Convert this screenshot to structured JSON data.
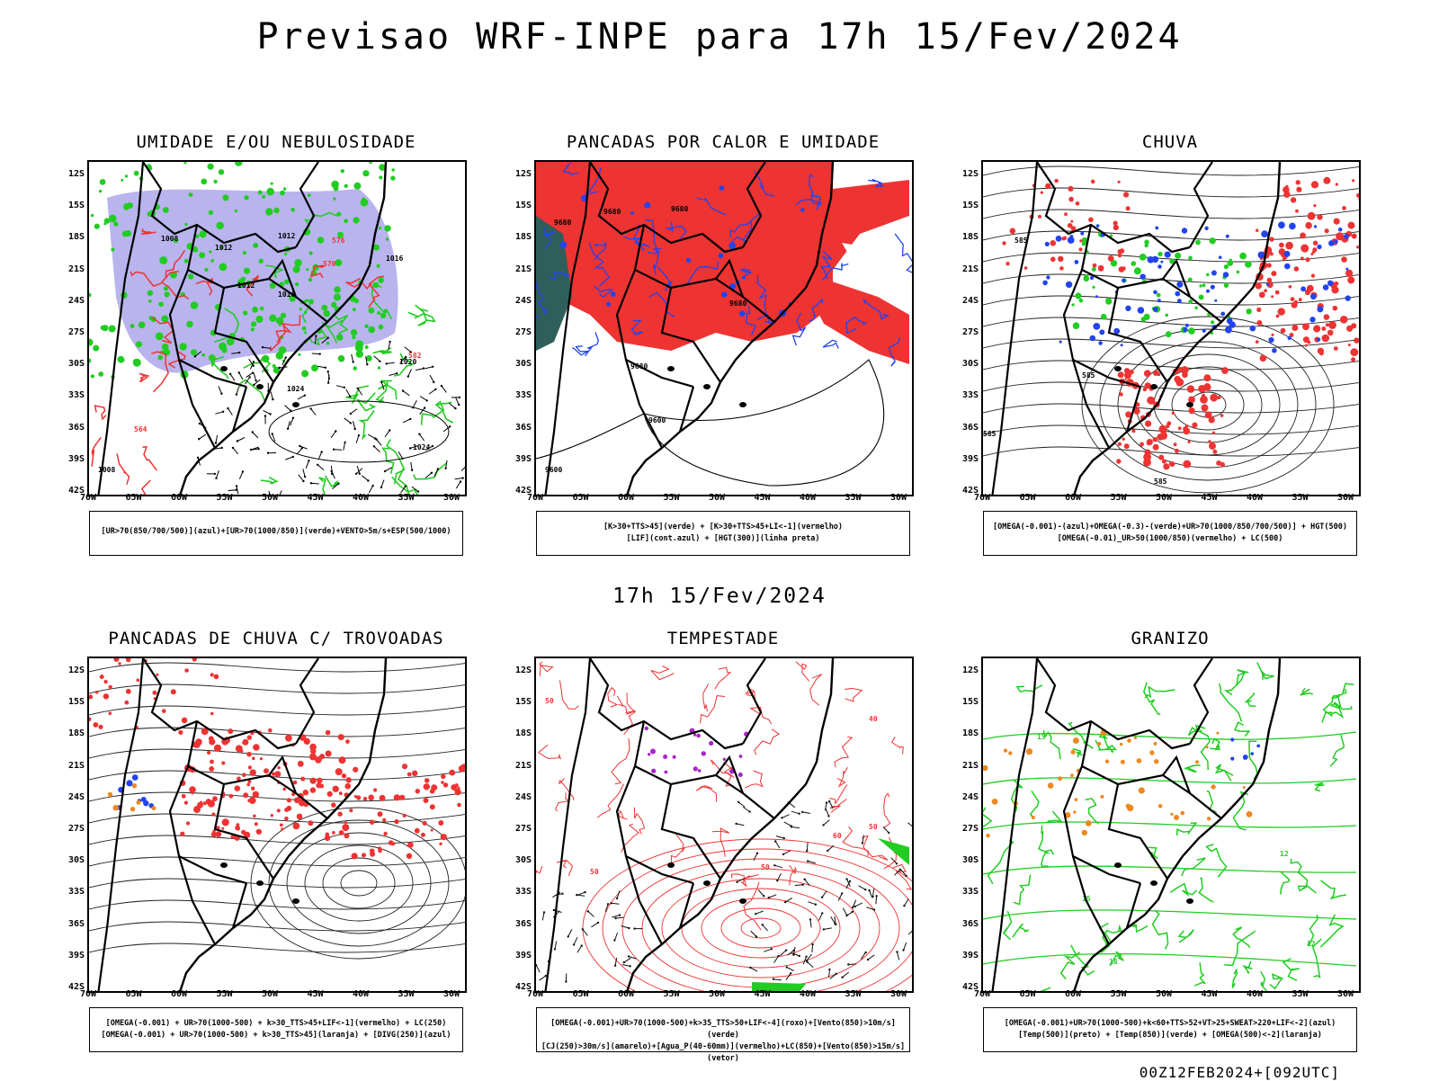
{
  "header": {
    "title": "Previsao WRF-INPE  para 17h 15/Fev/2024",
    "mid_title": "17h 15/Fev/2024",
    "footer": "00Z12FEB2024+[092UTC]"
  },
  "axes": {
    "lat_ticks": [
      "12S",
      "15S",
      "18S",
      "21S",
      "24S",
      "27S",
      "30S",
      "33S",
      "36S",
      "39S",
      "42S"
    ],
    "lon_ticks": [
      "70W",
      "65W",
      "60W",
      "55W",
      "50W",
      "45W",
      "40W",
      "35W",
      "30W"
    ]
  },
  "colors": {
    "green": "#22cc22",
    "red": "#ee3333",
    "blue": "#2244ee",
    "lavender": "#b9b4ee",
    "orange": "#ee8822",
    "purple": "#aa22cc",
    "dark_teal": "#2f5f5a"
  },
  "panels": [
    {
      "id": "umidade",
      "title": "UMIDADE E/OU NEBULOSIDADE",
      "legend": [
        "[UR>70(850/700/500)](azul)+[UR>70(1000/850)](verde)+VENTO>5m/s+ESP(500/1000)"
      ],
      "contour_labels": [
        "1008",
        "1012",
        "1012",
        "1012",
        "1016",
        "1016",
        "1020",
        "1024",
        "1024",
        "1008",
        "576",
        "570",
        "564",
        "582"
      ]
    },
    {
      "id": "pancadas_calor",
      "title": "PANCADAS POR CALOR E UMIDADE",
      "legend": [
        "[K>30+TTS>45](verde) + [K>30+TTS>45+LI<-1](vermelho)",
        "[LIF](cont.azul) + [HGT(300)](linha preta)"
      ],
      "contour_labels": [
        "9680",
        "9680",
        "9680",
        "9680",
        "9680",
        "9600",
        "9600"
      ]
    },
    {
      "id": "chuva",
      "title": "CHUVA",
      "legend": [
        "[OMEGA(-0.001)-(azul)+OMEGA(-0.3)-(verde)+UR>70(1000/850/700/500)] + HGT(500)",
        "[OMEGA(-0.01)_UR>50(1000/850)(vermelho) + LC(500)"
      ],
      "contour_labels": [
        "585",
        "585",
        "585",
        "585"
      ]
    },
    {
      "id": "trovoadas",
      "title": "PANCADAS DE CHUVA C/ TROVOADAS",
      "legend": [
        "[OMEGA(-0.001) + UR>70(1000-500) + k>30_TTS>45+LIF<-1](vermelho) + LC(250)",
        "[OMEGA(-0.001) + UR>70(1000-500) + k>30_TTS>45](laranja) + [DIVG(250)](azul)"
      ],
      "contour_labels": []
    },
    {
      "id": "tempestade",
      "title": "TEMPESTADE",
      "legend": [
        "[OMEGA(-0.001)+UR>70(1000-500)+k>35_TTS>50+LIF<-4](roxo)+[Vento(850)>10m/s](verde)",
        "[CJ(250)>30m/s](amarelo)+[Agua_P(40-60mm)](vermelho)+LC(850)+[Vento(850)>15m/s](vetor)"
      ],
      "contour_labels": [
        "50",
        "40",
        "50",
        "60",
        "50",
        "50"
      ]
    },
    {
      "id": "granizo",
      "title": "GRANIZO",
      "legend": [
        "[OMEGA(-0.001)+UR>70(1000-500)+k<60+TTS>52+VT>25+SWEAT>220+LIF<-2](azul)",
        "[Temp(500)](preto) + [Temp(850)](verde) + [OMEGA(500)<-2](laranja)"
      ],
      "contour_labels": [
        "12",
        "15",
        "18",
        "15",
        "12",
        "9"
      ]
    }
  ]
}
